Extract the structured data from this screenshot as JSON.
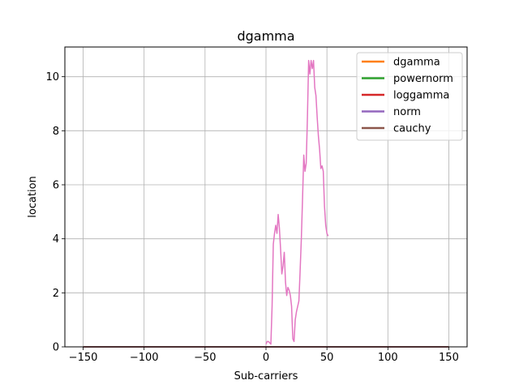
{
  "chart_data": {
    "type": "line",
    "title": "dgamma",
    "xlabel": "Sub-carriers",
    "ylabel": "location",
    "xlim": [
      -165,
      165
    ],
    "ylim": [
      0,
      11.1
    ],
    "xticks": [
      -150,
      -100,
      -50,
      0,
      50,
      100,
      150
    ],
    "xtick_labels": [
      "−150",
      "−100",
      "−50",
      "0",
      "50",
      "100",
      "150"
    ],
    "yticks": [
      0,
      2,
      4,
      6,
      8,
      10
    ],
    "ytick_labels": [
      "0",
      "2",
      "4",
      "6",
      "8",
      "10"
    ],
    "grid": true,
    "legend_position": "top-right",
    "legend": [
      {
        "name": "dgamma",
        "color": "#ff7f0e"
      },
      {
        "name": "powernorm",
        "color": "#2ca02c"
      },
      {
        "name": "loggamma",
        "color": "#d62728"
      },
      {
        "name": "norm",
        "color": "#9467bd"
      },
      {
        "name": "cauchy",
        "color": "#8c564b"
      }
    ],
    "series": [
      {
        "color": "#ff7f0e",
        "x": [
          -150,
          150
        ],
        "y": [
          0.0,
          0.0
        ]
      },
      {
        "color": "#2ca02c",
        "x": [
          -150,
          150
        ],
        "y": [
          0.0,
          0.0
        ]
      },
      {
        "color": "#d62728",
        "x": [
          -150,
          150
        ],
        "y": [
          0.0,
          0.0
        ]
      },
      {
        "color": "#9467bd",
        "x": [
          -150,
          150
        ],
        "y": [
          0.0,
          0.0
        ]
      },
      {
        "color": "#8c564b",
        "x": [
          -150,
          150
        ],
        "y": [
          0.0,
          0.0
        ]
      },
      {
        "color": "#e377c2",
        "x": [
          0,
          1,
          2,
          3,
          4,
          5,
          6,
          7,
          8,
          9,
          10,
          11,
          12,
          13,
          14,
          15,
          16,
          17,
          18,
          19,
          20,
          21,
          22,
          23,
          24,
          25,
          26,
          27,
          28,
          29,
          30,
          31,
          32,
          33,
          34,
          35,
          36,
          37,
          38,
          39,
          40,
          41,
          42,
          43,
          44,
          45,
          46,
          47,
          48,
          49,
          50,
          51
        ],
        "y": [
          0.1,
          0.2,
          0.2,
          0.15,
          0.1,
          1.5,
          3.8,
          4.2,
          4.5,
          4.2,
          4.9,
          4.4,
          3.6,
          2.7,
          3.0,
          3.5,
          2.4,
          1.9,
          2.2,
          2.1,
          1.9,
          1.5,
          0.3,
          0.2,
          1.0,
          1.3,
          1.5,
          1.7,
          2.8,
          4.0,
          5.5,
          7.1,
          6.5,
          6.8,
          8.5,
          10.6,
          10.1,
          10.6,
          10.3,
          10.6,
          9.6,
          9.3,
          8.5,
          7.8,
          7.3,
          6.6,
          6.7,
          6.5,
          5.2,
          4.5,
          4.2,
          4.1
        ]
      }
    ]
  }
}
